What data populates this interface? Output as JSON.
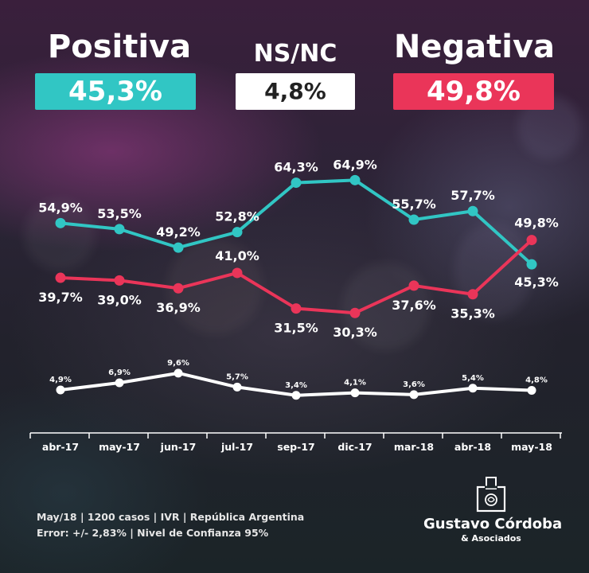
{
  "header": {
    "positive_label": "Positiva",
    "positive_value": "45,3%",
    "nsnc_label": "NS/NC",
    "nsnc_value": "4,8%",
    "negative_label": "Negativa",
    "negative_value": "49,8%"
  },
  "chart_data": {
    "type": "line",
    "categories": [
      "abr-17",
      "may-17",
      "jun-17",
      "jul-17",
      "sep-17",
      "dic-17",
      "mar-18",
      "abr-18",
      "may-18"
    ],
    "series": [
      {
        "key": "positiva",
        "values": [
          54.9,
          53.5,
          49.2,
          52.8,
          64.3,
          64.9,
          55.7,
          57.7,
          45.3
        ],
        "labels": [
          "54,9%",
          "53,5%",
          "49,2%",
          "52,8%",
          "64,3%",
          "64,9%",
          "55,7%",
          "57,7%",
          "45,3%"
        ],
        "color": "#31c6c4"
      },
      {
        "key": "negativa",
        "values": [
          39.7,
          39.0,
          36.9,
          41.0,
          31.5,
          30.3,
          37.6,
          35.3,
          49.8
        ],
        "labels": [
          "39,7%",
          "39,0%",
          "36,9%",
          "41,0%",
          "31,5%",
          "30,3%",
          "37,6%",
          "35,3%",
          "49,8%"
        ],
        "color": "#ea3559"
      },
      {
        "key": "nsnc",
        "values": [
          4.9,
          6.9,
          9.6,
          5.7,
          3.4,
          4.1,
          3.6,
          5.4,
          4.8
        ],
        "labels": [
          "4,9%",
          "6,9%",
          "9,6%",
          "5,7%",
          "3,4%",
          "4,1%",
          "3,6%",
          "5,4%",
          "4,8%"
        ],
        "color": "#ffffff"
      }
    ],
    "grid": false,
    "legend": "top"
  },
  "footer": {
    "line1": "May/18 | 1200 casos | IVR | República Argentina",
    "line2": "Error: +/- 2,83% | Nivel de Confianza 95%"
  },
  "brand": {
    "name": "Gustavo Córdoba",
    "sub": "& Asociados",
    "icon": "ballot-box-icon"
  }
}
